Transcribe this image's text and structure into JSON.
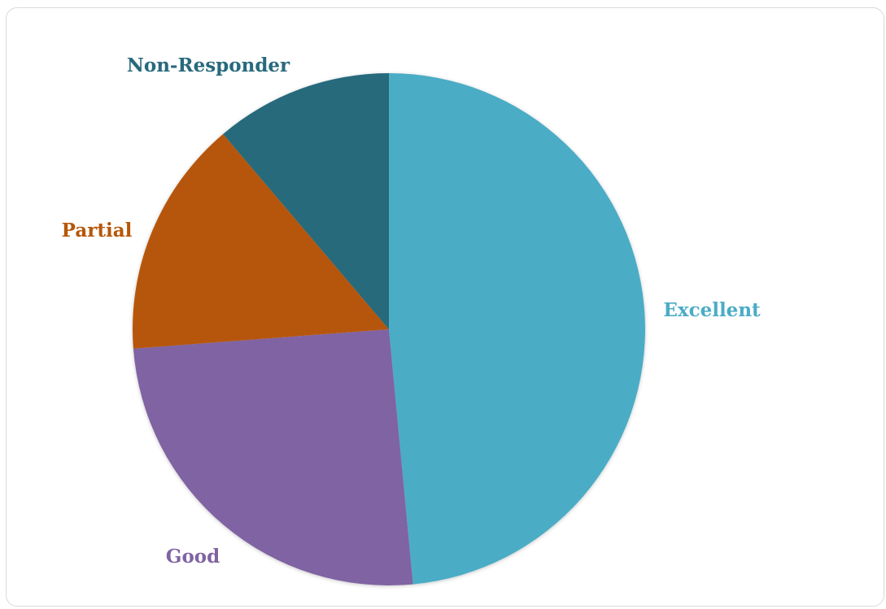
{
  "chart_data": {
    "type": "pie",
    "title": "",
    "slices": [
      {
        "label": "Excellent",
        "value": 48.5,
        "color": "#4BACC6"
      },
      {
        "label": "Good",
        "value": 25.3,
        "color": "#8064A2"
      },
      {
        "label": "Partial",
        "value": 15.0,
        "color": "#B65708"
      },
      {
        "label": "Non-Responder",
        "value": 11.2,
        "color": "#276A7C"
      }
    ],
    "start_angle": "12 o'clock",
    "direction": "clockwise",
    "legend": "none",
    "labels": "category names outside slices"
  }
}
